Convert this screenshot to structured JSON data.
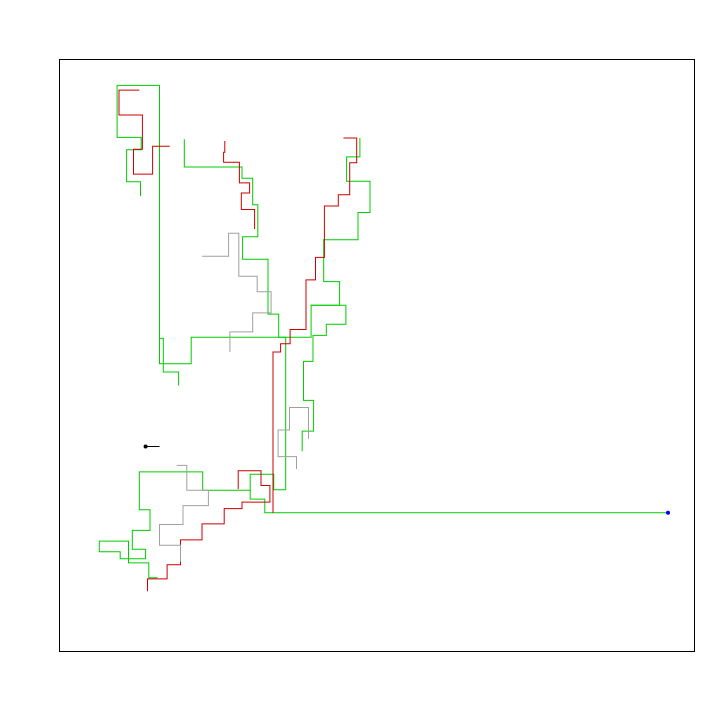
{
  "chart_data": {
    "type": "line",
    "title": "",
    "xlabel": "",
    "ylabel": "",
    "xlim": [
      0,
      100
    ],
    "ylim": [
      0,
      100
    ],
    "grid": false,
    "axes_visible": false,
    "colors": {
      "frame": "#000000",
      "green": "#00cc00",
      "red": "#cc0000",
      "grey": "#a0a0a0",
      "start_marker": "#000000",
      "end_marker": "#0000ff"
    },
    "series": [
      {
        "name": "green-trunk",
        "color": "#00cc00",
        "points": [
          [
            95.9,
            23.4
          ],
          [
            36.4,
            23.4
          ],
          [
            32.3,
            23.4
          ],
          [
            32.3,
            25.7
          ],
          [
            30.0,
            25.7
          ],
          [
            30.0,
            27.2
          ],
          [
            22.5,
            27.2
          ],
          [
            22.5,
            30.3
          ],
          [
            12.5,
            30.3
          ],
          [
            12.5,
            23.9
          ],
          [
            14.2,
            23.9
          ],
          [
            14.2,
            20.4
          ],
          [
            11.4,
            20.4
          ],
          [
            11.4,
            17.2
          ],
          [
            13.5,
            17.2
          ],
          [
            13.5,
            15.6
          ],
          [
            9.5,
            15.6
          ],
          [
            9.5,
            16.8
          ],
          [
            6.2,
            16.8
          ],
          [
            6.2,
            18.6
          ],
          [
            10.8,
            18.6
          ],
          [
            10.8,
            14.9
          ],
          [
            14.0,
            14.9
          ],
          [
            14.0,
            12.4
          ],
          [
            15.4,
            12.4
          ]
        ]
      },
      {
        "name": "green-branch-mid",
        "color": "#00cc00",
        "points": [
          [
            30.0,
            27.2
          ],
          [
            30.0,
            29.9
          ],
          [
            33.7,
            29.9
          ],
          [
            33.7,
            27.3
          ],
          [
            35.6,
            27.3
          ],
          [
            35.6,
            53.1
          ],
          [
            20.7,
            53.1
          ],
          [
            20.7,
            48.6
          ],
          [
            15.7,
            48.6
          ],
          [
            15.7,
            52.9
          ],
          [
            16.3,
            52.9
          ],
          [
            16.3,
            47.2
          ],
          [
            18.7,
            47.2
          ],
          [
            18.7,
            44.9
          ]
        ]
      },
      {
        "name": "green-branch-upper",
        "color": "#00cc00",
        "points": [
          [
            15.7,
            52.9
          ],
          [
            15.7,
            95.7
          ],
          [
            9.0,
            95.7
          ],
          [
            9.0,
            86.9
          ],
          [
            12.8,
            86.9
          ],
          [
            12.8,
            84.8
          ],
          [
            10.5,
            84.8
          ],
          [
            10.5,
            79.4
          ],
          [
            12.7,
            79.4
          ],
          [
            12.7,
            77.0
          ]
        ]
      },
      {
        "name": "green-branch-right",
        "color": "#00cc00",
        "points": [
          [
            35.6,
            53.1
          ],
          [
            39.6,
            53.1
          ],
          [
            39.6,
            58.5
          ],
          [
            44.1,
            58.5
          ],
          [
            44.1,
            62.5
          ],
          [
            41.6,
            62.5
          ],
          [
            41.6,
            69.6
          ],
          [
            47.0,
            69.6
          ],
          [
            47.0,
            74.2
          ],
          [
            48.9,
            74.2
          ],
          [
            48.9,
            79.5
          ],
          [
            45.2,
            79.5
          ],
          [
            45.2,
            83.6
          ],
          [
            47.3,
            83.6
          ],
          [
            47.3,
            86.8
          ]
        ]
      },
      {
        "name": "green-branch-center",
        "color": "#00cc00",
        "points": [
          [
            35.6,
            53.1
          ],
          [
            34.5,
            53.1
          ],
          [
            34.5,
            57.0
          ],
          [
            32.8,
            57.0
          ],
          [
            32.8,
            66.3
          ],
          [
            28.8,
            66.3
          ],
          [
            28.8,
            70.1
          ],
          [
            31.2,
            70.1
          ],
          [
            31.2,
            75.5
          ],
          [
            30.4,
            75.5
          ],
          [
            30.4,
            80.0
          ],
          [
            28.7,
            80.0
          ],
          [
            28.7,
            81.9
          ],
          [
            19.6,
            81.9
          ],
          [
            19.6,
            86.6
          ]
        ]
      },
      {
        "name": "green-branch-east",
        "color": "#00cc00",
        "points": [
          [
            39.6,
            58.5
          ],
          [
            45.1,
            58.5
          ],
          [
            45.1,
            55.3
          ],
          [
            42.0,
            55.3
          ],
          [
            42.0,
            53.4
          ],
          [
            39.9,
            53.4
          ],
          [
            39.9,
            49.0
          ],
          [
            38.4,
            49.0
          ],
          [
            38.4,
            42.4
          ],
          [
            40.0,
            42.4
          ],
          [
            40.0,
            37.2
          ],
          [
            38.2,
            37.2
          ],
          [
            38.2,
            33.8
          ]
        ]
      },
      {
        "name": "red-walk-a",
        "color": "#cc0000",
        "points": [
          [
            33.6,
            23.4
          ],
          [
            33.6,
            50.6
          ],
          [
            34.8,
            50.6
          ],
          [
            34.8,
            52.0
          ],
          [
            36.3,
            52.0
          ],
          [
            36.3,
            54.4
          ],
          [
            38.8,
            54.4
          ],
          [
            38.8,
            62.8
          ],
          [
            40.3,
            62.8
          ],
          [
            40.3,
            66.6
          ],
          [
            41.7,
            66.6
          ],
          [
            41.7,
            75.3
          ],
          [
            43.9,
            75.3
          ],
          [
            43.9,
            77.2
          ],
          [
            45.7,
            77.2
          ],
          [
            45.7,
            82.6
          ],
          [
            46.8,
            82.6
          ],
          [
            46.8,
            86.8
          ],
          [
            44.7,
            86.8
          ]
        ]
      },
      {
        "name": "red-walk-b",
        "color": "#cc0000",
        "points": [
          [
            28.1,
            27.4
          ],
          [
            28.1,
            30.5
          ],
          [
            31.7,
            30.5
          ],
          [
            31.7,
            28.0
          ],
          [
            33.1,
            28.0
          ],
          [
            33.1,
            25.2
          ],
          [
            28.7,
            25.2
          ],
          [
            28.7,
            24.1
          ],
          [
            25.9,
            24.1
          ],
          [
            25.9,
            21.5
          ],
          [
            22.4,
            21.5
          ],
          [
            22.4,
            18.8
          ],
          [
            19.0,
            18.8
          ],
          [
            19.0,
            14.6
          ],
          [
            16.9,
            14.6
          ],
          [
            16.9,
            12.2
          ],
          [
            13.8,
            12.2
          ],
          [
            13.8,
            10.1
          ]
        ]
      },
      {
        "name": "red-walk-c",
        "color": "#cc0000",
        "points": [
          [
            12.5,
            94.9
          ],
          [
            9.3,
            94.9
          ],
          [
            9.3,
            90.7
          ],
          [
            13.0,
            90.7
          ],
          [
            13.0,
            84.9
          ],
          [
            11.6,
            84.9
          ],
          [
            11.6,
            80.7
          ],
          [
            14.6,
            80.7
          ],
          [
            14.6,
            85.4
          ],
          [
            17.3,
            85.4
          ]
        ]
      },
      {
        "name": "red-walk-d",
        "color": "#cc0000",
        "points": [
          [
            26.0,
            86.3
          ],
          [
            26.0,
            84.4
          ],
          [
            25.8,
            84.4
          ],
          [
            25.8,
            82.7
          ],
          [
            28.3,
            82.7
          ],
          [
            28.3,
            79.2
          ],
          [
            29.9,
            79.2
          ],
          [
            29.9,
            77.5
          ],
          [
            28.6,
            77.5
          ],
          [
            28.6,
            74.7
          ],
          [
            30.7,
            74.7
          ],
          [
            30.7,
            71.4
          ]
        ]
      },
      {
        "name": "grey-walk-a",
        "color": "#a0a0a0",
        "points": [
          [
            22.4,
            66.8
          ],
          [
            26.6,
            66.8
          ],
          [
            26.6,
            70.7
          ],
          [
            28.2,
            70.7
          ],
          [
            28.2,
            63.4
          ],
          [
            31.1,
            63.4
          ],
          [
            31.1,
            60.8
          ],
          [
            33.3,
            60.8
          ],
          [
            33.3,
            57.2
          ],
          [
            30.4,
            57.2
          ],
          [
            30.4,
            54.0
          ],
          [
            26.8,
            54.0
          ],
          [
            26.8,
            50.6
          ]
        ]
      },
      {
        "name": "grey-walk-b",
        "color": "#a0a0a0",
        "points": [
          [
            18.4,
            31.4
          ],
          [
            20.0,
            31.4
          ],
          [
            20.0,
            27.2
          ],
          [
            23.4,
            27.2
          ],
          [
            23.4,
            24.6
          ],
          [
            19.4,
            24.6
          ],
          [
            19.4,
            21.4
          ],
          [
            15.7,
            21.4
          ],
          [
            15.7,
            17.9
          ],
          [
            19.0,
            17.9
          ],
          [
            19.0,
            15.1
          ]
        ]
      },
      {
        "name": "grey-walk-c",
        "color": "#a0a0a0",
        "points": [
          [
            39.2,
            35.9
          ],
          [
            39.2,
            41.2
          ],
          [
            36.2,
            41.2
          ],
          [
            36.2,
            37.4
          ],
          [
            34.4,
            37.4
          ],
          [
            34.4,
            32.9
          ],
          [
            37.3,
            32.9
          ],
          [
            37.3,
            30.8
          ]
        ]
      }
    ],
    "markers": [
      {
        "name": "start-point",
        "x": 13.5,
        "y": 34.6,
        "color": "#000000"
      },
      {
        "name": "end-point",
        "x": 95.9,
        "y": 23.4,
        "color": "#0000ff"
      }
    ],
    "connector": {
      "from": [
        13.5,
        34.6
      ],
      "to": [
        15.7,
        34.6
      ],
      "color": "#000000"
    }
  }
}
